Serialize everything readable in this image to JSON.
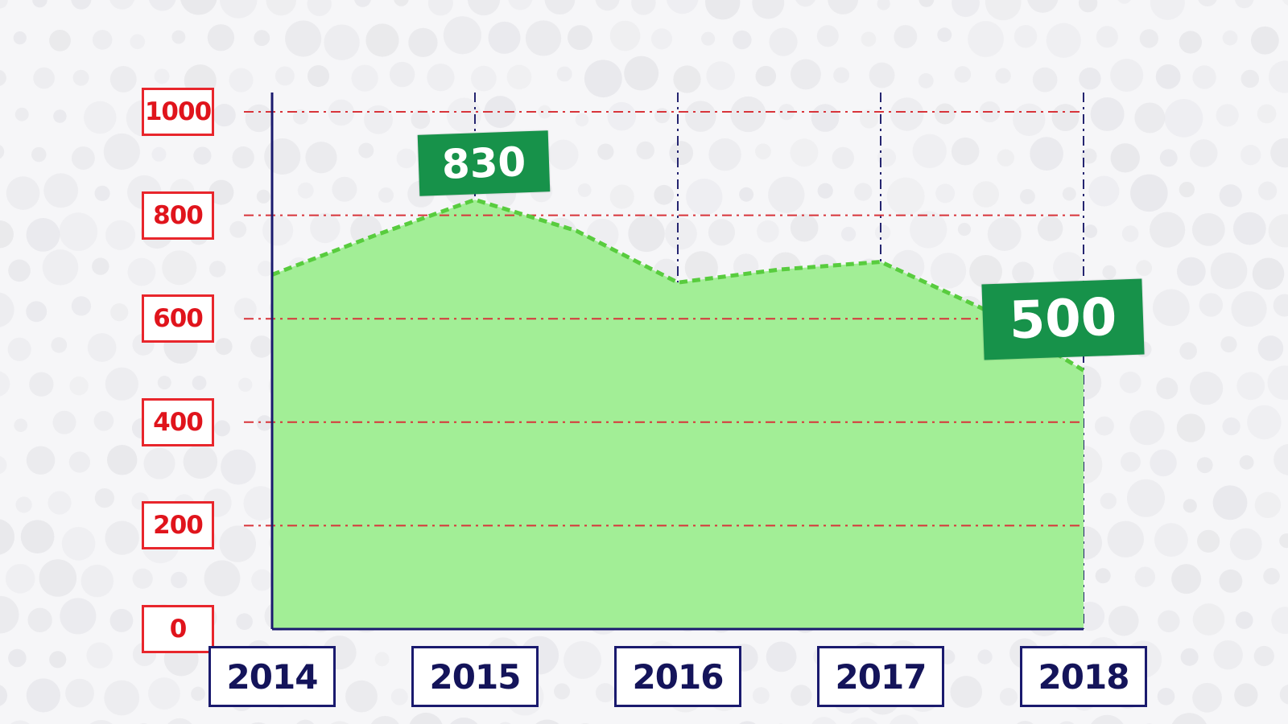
{
  "chart_data": {
    "type": "area",
    "x": [
      2014,
      2014.5,
      2015,
      2015.5,
      2016,
      2016.5,
      2017,
      2017.5,
      2018
    ],
    "values": [
      685,
      760,
      830,
      770,
      670,
      695,
      710,
      620,
      500
    ],
    "categories": [
      "2014",
      "2015",
      "2016",
      "2017",
      "2018"
    ],
    "yticks": [
      "0",
      "200",
      "400",
      "600",
      "800",
      "1000"
    ],
    "ylim": [
      0,
      1000
    ],
    "title": "",
    "xlabel": "",
    "ylabel": "",
    "annotations": [
      {
        "text": "830",
        "x": 2015,
        "y": 830
      },
      {
        "text": "500",
        "x": 2018,
        "y": 500
      }
    ],
    "grid": true,
    "colors": {
      "fill": "#a2ee96",
      "line": "#58cc3e",
      "hgrid": "#d8343a",
      "vgrid": "#252570",
      "axis": "#1a1a6e",
      "callout": "#17924a",
      "ytick": "#e0141c",
      "xtick": "#14145a"
    }
  }
}
